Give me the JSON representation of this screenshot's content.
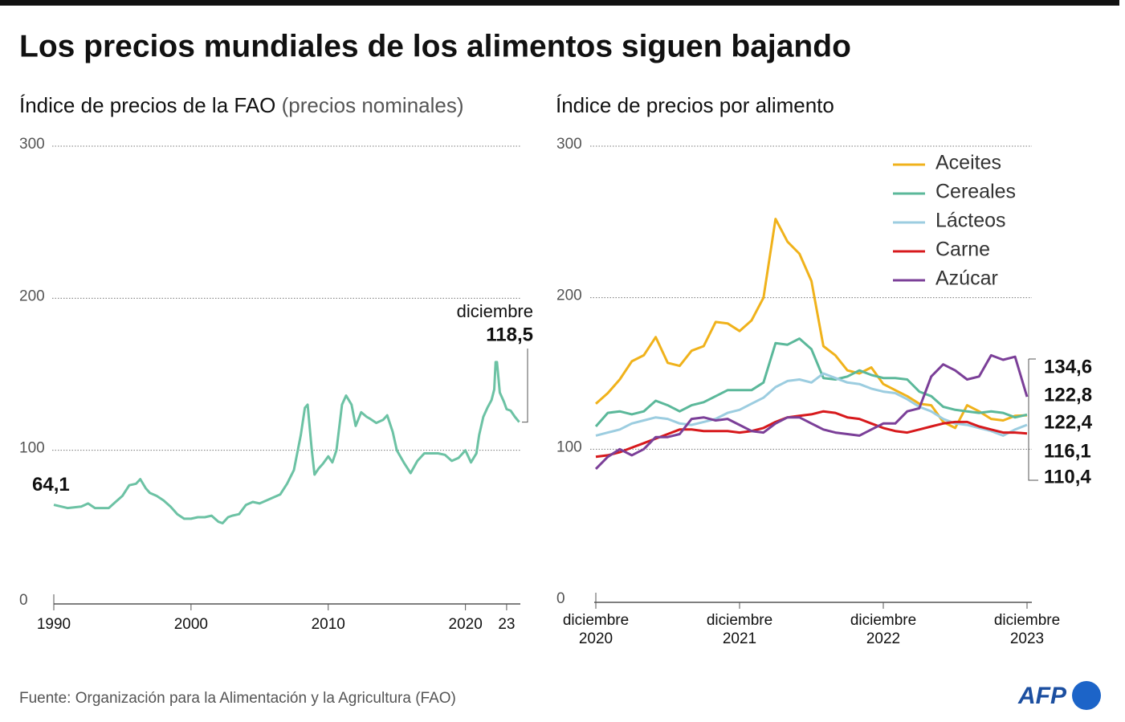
{
  "title": "Los precios mundiales de los alimentos siguen bajando",
  "source": "Fuente: Organización para la Alimentación y la Agricultura (FAO)",
  "logo": "AFP",
  "chart_data": [
    {
      "type": "line",
      "subtitle": "Índice de precios de la FAO",
      "subtitle_note": "(precios nominales)",
      "x": [
        1990,
        1991,
        1992,
        1992.5,
        1993,
        1994,
        1994.5,
        1995,
        1995.5,
        1996,
        1996.3,
        1996.7,
        1997,
        1997.5,
        1998,
        1998.5,
        1999,
        1999.5,
        2000,
        2000.5,
        2001,
        2001.5,
        2002,
        2002.3,
        2002.7,
        2003,
        2003.5,
        2004,
        2004.5,
        2005,
        2005.5,
        2006,
        2006.5,
        2007,
        2007.5,
        2008,
        2008.3,
        2008.5,
        2008.8,
        2009,
        2009.3,
        2009.6,
        2010,
        2010.3,
        2010.6,
        2011,
        2011.3,
        2011.7,
        2012,
        2012.4,
        2012.8,
        2013,
        2013.5,
        2014,
        2014.3,
        2014.7,
        2015,
        2015.5,
        2016,
        2016.5,
        2017,
        2017.5,
        2018,
        2018.5,
        2019,
        2019.5,
        2020,
        2020.4,
        2020.8,
        2021,
        2021.3,
        2021.6,
        2021.9,
        2022.1,
        2022.2,
        2022.3,
        2022.5,
        2022.8,
        2023,
        2023.3,
        2023.6,
        2023.92
      ],
      "series": [
        {
          "color": "#6cc2a4",
          "values": [
            64.1,
            62,
            63,
            65,
            62,
            62,
            66,
            70,
            77,
            78,
            81,
            75,
            72,
            70,
            67,
            63,
            58,
            55,
            55,
            56,
            56,
            57,
            53,
            52,
            56,
            57,
            58,
            64,
            66,
            65,
            67,
            69,
            71,
            78,
            87,
            110,
            128,
            130,
            100,
            84,
            88,
            91,
            96,
            92,
            100,
            130,
            136,
            130,
            116,
            125,
            122,
            121,
            118,
            120,
            123,
            112,
            100,
            92,
            85,
            93,
            98,
            98,
            98,
            97,
            93,
            95,
            100,
            92,
            98,
            110,
            122,
            128,
            133,
            140,
            158,
            158,
            138,
            132,
            127,
            126,
            122,
            118.5
          ],
          "value_labels": [
            "64,1",
            null,
            null,
            null,
            null,
            null,
            null,
            null,
            null,
            null,
            null,
            null,
            null,
            null,
            null,
            null,
            null,
            null,
            null,
            null,
            null,
            null,
            null,
            null,
            null,
            null,
            null,
            null,
            null,
            null,
            null,
            null,
            null,
            null,
            null,
            null,
            null,
            null,
            null,
            null,
            null,
            null,
            null,
            null,
            null,
            null,
            null,
            null,
            null,
            null,
            null,
            null,
            null,
            null,
            null,
            null,
            null,
            null,
            null,
            null,
            null,
            null,
            null,
            null,
            null,
            null,
            null,
            null,
            null,
            null,
            null,
            null,
            null,
            null,
            null,
            null,
            null,
            null,
            null,
            null,
            null,
            "118,5"
          ]
        }
      ],
      "annotations": [
        "diciembre"
      ],
      "xlim": [
        1990,
        2024
      ],
      "xticks": [
        1990,
        2000,
        2010,
        2020,
        {
          "value": 2023,
          "label": "23"
        }
      ],
      "ylim": [
        0,
        300
      ],
      "yticks": [
        0,
        100,
        200,
        300
      ],
      "grid": true
    },
    {
      "type": "line",
      "subtitle": "Índice de precios por alimento",
      "categories": [
        "diciembre 2020",
        null,
        null,
        null,
        null,
        null,
        null,
        null,
        null,
        null,
        null,
        null,
        "diciembre 2021",
        null,
        null,
        null,
        null,
        null,
        null,
        null,
        null,
        null,
        null,
        null,
        "diciembre 2022",
        null,
        null,
        null,
        null,
        null,
        null,
        null,
        null,
        null,
        null,
        null,
        "diciembre 2023"
      ],
      "series": [
        {
          "name": "Aceites",
          "color": "#f0b21b",
          "values": [
            130,
            137,
            146,
            158,
            162,
            174,
            157,
            155,
            165,
            168,
            184,
            183,
            178,
            185,
            200,
            252,
            237,
            229,
            211,
            168,
            162,
            152,
            150,
            154,
            143,
            139,
            135,
            130,
            129,
            118,
            114,
            129,
            125,
            120,
            119,
            122,
            122.4
          ],
          "value_labels": [
            null,
            null,
            null,
            null,
            null,
            null,
            null,
            null,
            null,
            null,
            null,
            null,
            null,
            null,
            null,
            null,
            null,
            null,
            null,
            null,
            null,
            null,
            null,
            null,
            null,
            null,
            null,
            null,
            null,
            null,
            null,
            null,
            null,
            null,
            null,
            null,
            "122,4"
          ]
        },
        {
          "name": "Cereales",
          "color": "#5bb89a",
          "values": [
            115,
            124,
            125,
            123,
            125,
            132,
            129,
            125,
            129,
            131,
            135,
            139,
            139,
            139,
            144,
            170,
            169,
            173,
            166,
            147,
            146,
            148,
            152,
            149,
            147,
            147,
            146,
            138,
            135,
            128,
            126,
            125,
            124,
            125,
            124,
            121,
            122.8
          ],
          "value_labels": [
            null,
            null,
            null,
            null,
            null,
            null,
            null,
            null,
            null,
            null,
            null,
            null,
            null,
            null,
            null,
            null,
            null,
            null,
            null,
            null,
            null,
            null,
            null,
            null,
            null,
            null,
            null,
            null,
            null,
            null,
            null,
            null,
            null,
            null,
            null,
            null,
            "122,8"
          ]
        },
        {
          "name": "Lácteos",
          "color": "#9ccde0",
          "values": [
            109,
            111,
            113,
            117,
            119,
            121,
            120,
            117,
            116,
            118,
            120,
            124,
            126,
            130,
            134,
            141,
            145,
            146,
            144,
            150,
            147,
            144,
            143,
            140,
            138,
            137,
            133,
            128,
            125,
            120,
            117,
            116,
            114,
            112,
            109,
            113,
            116.1
          ],
          "value_labels": [
            null,
            null,
            null,
            null,
            null,
            null,
            null,
            null,
            null,
            null,
            null,
            null,
            null,
            null,
            null,
            null,
            null,
            null,
            null,
            null,
            null,
            null,
            null,
            null,
            null,
            null,
            null,
            null,
            null,
            null,
            null,
            null,
            null,
            null,
            null,
            null,
            "116,1"
          ]
        },
        {
          "name": "Carne",
          "color": "#d7191c",
          "values": [
            95,
            96,
            98,
            101,
            104,
            107,
            110,
            113,
            113,
            112,
            112,
            112,
            111,
            112,
            114,
            118,
            121,
            122,
            123,
            125,
            124,
            121,
            120,
            117,
            114,
            112,
            111,
            113,
            115,
            117,
            118,
            118,
            115,
            113,
            111,
            111,
            110.4
          ],
          "value_labels": [
            null,
            null,
            null,
            null,
            null,
            null,
            null,
            null,
            null,
            null,
            null,
            null,
            null,
            null,
            null,
            null,
            null,
            null,
            null,
            null,
            null,
            null,
            null,
            null,
            null,
            null,
            null,
            null,
            null,
            null,
            null,
            null,
            null,
            null,
            null,
            null,
            "110,4"
          ]
        },
        {
          "name": "Azúcar",
          "color": "#7b3f98",
          "values": [
            87,
            95,
            100,
            96,
            100,
            108,
            108,
            110,
            120,
            121,
            119,
            120,
            116,
            112,
            111,
            117,
            121,
            121,
            117,
            113,
            111,
            110,
            109,
            113,
            117,
            117,
            125,
            127,
            148,
            156,
            152,
            146,
            148,
            162,
            159,
            161,
            134.6
          ],
          "value_labels": [
            null,
            null,
            null,
            null,
            null,
            null,
            null,
            null,
            null,
            null,
            null,
            null,
            null,
            null,
            null,
            null,
            null,
            null,
            null,
            null,
            null,
            null,
            null,
            null,
            null,
            null,
            null,
            null,
            null,
            null,
            null,
            null,
            null,
            null,
            null,
            null,
            "134,6"
          ]
        }
      ],
      "ylim": [
        0,
        300
      ],
      "yticks": [
        0,
        100,
        200,
        300
      ],
      "grid": true,
      "legend": "top right"
    }
  ]
}
